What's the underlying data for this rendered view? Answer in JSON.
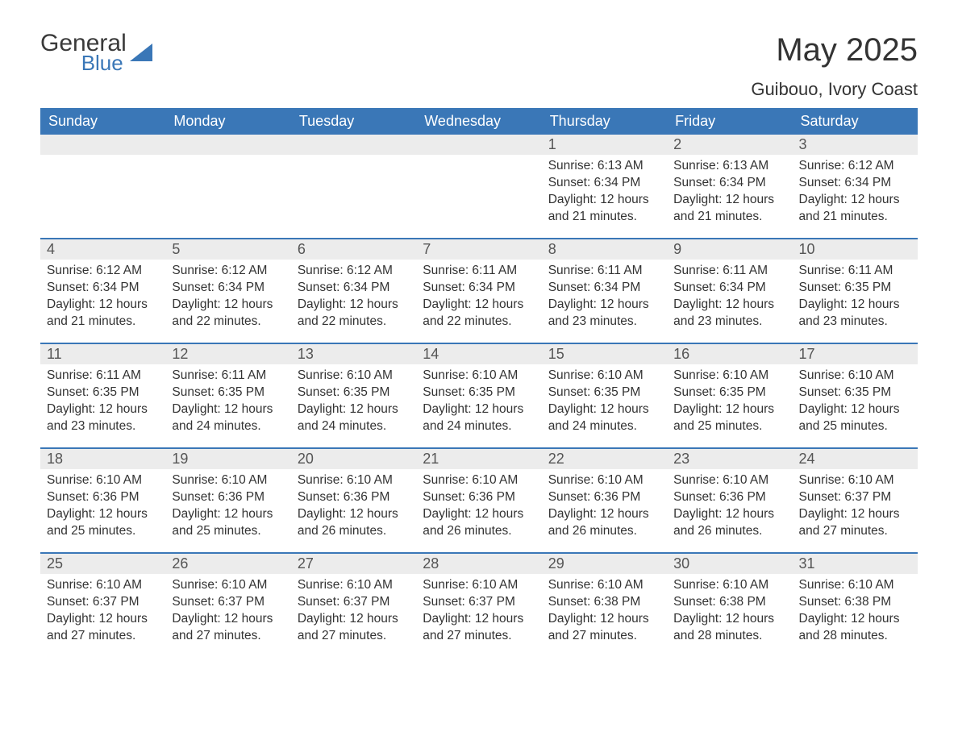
{
  "logo": {
    "text1": "General",
    "text2": "Blue",
    "icon_color": "#3a77b7"
  },
  "title": "May 2025",
  "location": "Guibouo, Ivory Coast",
  "colors": {
    "header_bg": "#3a77b7",
    "header_text": "#ffffff",
    "daynum_bg": "#ececec",
    "daynum_text": "#555555",
    "body_text": "#333333",
    "divider": "#3a77b7",
    "page_bg": "#ffffff"
  },
  "typography": {
    "title_fontsize": 40,
    "location_fontsize": 22,
    "dayheader_fontsize": 18,
    "daynum_fontsize": 18,
    "body_fontsize": 15.5
  },
  "day_headers": [
    "Sunday",
    "Monday",
    "Tuesday",
    "Wednesday",
    "Thursday",
    "Friday",
    "Saturday"
  ],
  "weeks": [
    [
      {
        "day": "",
        "lines": []
      },
      {
        "day": "",
        "lines": []
      },
      {
        "day": "",
        "lines": []
      },
      {
        "day": "",
        "lines": []
      },
      {
        "day": "1",
        "lines": [
          "Sunrise: 6:13 AM",
          "Sunset: 6:34 PM",
          "Daylight: 12 hours",
          "and 21 minutes."
        ]
      },
      {
        "day": "2",
        "lines": [
          "Sunrise: 6:13 AM",
          "Sunset: 6:34 PM",
          "Daylight: 12 hours",
          "and 21 minutes."
        ]
      },
      {
        "day": "3",
        "lines": [
          "Sunrise: 6:12 AM",
          "Sunset: 6:34 PM",
          "Daylight: 12 hours",
          "and 21 minutes."
        ]
      }
    ],
    [
      {
        "day": "4",
        "lines": [
          "Sunrise: 6:12 AM",
          "Sunset: 6:34 PM",
          "Daylight: 12 hours",
          "and 21 minutes."
        ]
      },
      {
        "day": "5",
        "lines": [
          "Sunrise: 6:12 AM",
          "Sunset: 6:34 PM",
          "Daylight: 12 hours",
          "and 22 minutes."
        ]
      },
      {
        "day": "6",
        "lines": [
          "Sunrise: 6:12 AM",
          "Sunset: 6:34 PM",
          "Daylight: 12 hours",
          "and 22 minutes."
        ]
      },
      {
        "day": "7",
        "lines": [
          "Sunrise: 6:11 AM",
          "Sunset: 6:34 PM",
          "Daylight: 12 hours",
          "and 22 minutes."
        ]
      },
      {
        "day": "8",
        "lines": [
          "Sunrise: 6:11 AM",
          "Sunset: 6:34 PM",
          "Daylight: 12 hours",
          "and 23 minutes."
        ]
      },
      {
        "day": "9",
        "lines": [
          "Sunrise: 6:11 AM",
          "Sunset: 6:34 PM",
          "Daylight: 12 hours",
          "and 23 minutes."
        ]
      },
      {
        "day": "10",
        "lines": [
          "Sunrise: 6:11 AM",
          "Sunset: 6:35 PM",
          "Daylight: 12 hours",
          "and 23 minutes."
        ]
      }
    ],
    [
      {
        "day": "11",
        "lines": [
          "Sunrise: 6:11 AM",
          "Sunset: 6:35 PM",
          "Daylight: 12 hours",
          "and 23 minutes."
        ]
      },
      {
        "day": "12",
        "lines": [
          "Sunrise: 6:11 AM",
          "Sunset: 6:35 PM",
          "Daylight: 12 hours",
          "and 24 minutes."
        ]
      },
      {
        "day": "13",
        "lines": [
          "Sunrise: 6:10 AM",
          "Sunset: 6:35 PM",
          "Daylight: 12 hours",
          "and 24 minutes."
        ]
      },
      {
        "day": "14",
        "lines": [
          "Sunrise: 6:10 AM",
          "Sunset: 6:35 PM",
          "Daylight: 12 hours",
          "and 24 minutes."
        ]
      },
      {
        "day": "15",
        "lines": [
          "Sunrise: 6:10 AM",
          "Sunset: 6:35 PM",
          "Daylight: 12 hours",
          "and 24 minutes."
        ]
      },
      {
        "day": "16",
        "lines": [
          "Sunrise: 6:10 AM",
          "Sunset: 6:35 PM",
          "Daylight: 12 hours",
          "and 25 minutes."
        ]
      },
      {
        "day": "17",
        "lines": [
          "Sunrise: 6:10 AM",
          "Sunset: 6:35 PM",
          "Daylight: 12 hours",
          "and 25 minutes."
        ]
      }
    ],
    [
      {
        "day": "18",
        "lines": [
          "Sunrise: 6:10 AM",
          "Sunset: 6:36 PM",
          "Daylight: 12 hours",
          "and 25 minutes."
        ]
      },
      {
        "day": "19",
        "lines": [
          "Sunrise: 6:10 AM",
          "Sunset: 6:36 PM",
          "Daylight: 12 hours",
          "and 25 minutes."
        ]
      },
      {
        "day": "20",
        "lines": [
          "Sunrise: 6:10 AM",
          "Sunset: 6:36 PM",
          "Daylight: 12 hours",
          "and 26 minutes."
        ]
      },
      {
        "day": "21",
        "lines": [
          "Sunrise: 6:10 AM",
          "Sunset: 6:36 PM",
          "Daylight: 12 hours",
          "and 26 minutes."
        ]
      },
      {
        "day": "22",
        "lines": [
          "Sunrise: 6:10 AM",
          "Sunset: 6:36 PM",
          "Daylight: 12 hours",
          "and 26 minutes."
        ]
      },
      {
        "day": "23",
        "lines": [
          "Sunrise: 6:10 AM",
          "Sunset: 6:36 PM",
          "Daylight: 12 hours",
          "and 26 minutes."
        ]
      },
      {
        "day": "24",
        "lines": [
          "Sunrise: 6:10 AM",
          "Sunset: 6:37 PM",
          "Daylight: 12 hours",
          "and 27 minutes."
        ]
      }
    ],
    [
      {
        "day": "25",
        "lines": [
          "Sunrise: 6:10 AM",
          "Sunset: 6:37 PM",
          "Daylight: 12 hours",
          "and 27 minutes."
        ]
      },
      {
        "day": "26",
        "lines": [
          "Sunrise: 6:10 AM",
          "Sunset: 6:37 PM",
          "Daylight: 12 hours",
          "and 27 minutes."
        ]
      },
      {
        "day": "27",
        "lines": [
          "Sunrise: 6:10 AM",
          "Sunset: 6:37 PM",
          "Daylight: 12 hours",
          "and 27 minutes."
        ]
      },
      {
        "day": "28",
        "lines": [
          "Sunrise: 6:10 AM",
          "Sunset: 6:37 PM",
          "Daylight: 12 hours",
          "and 27 minutes."
        ]
      },
      {
        "day": "29",
        "lines": [
          "Sunrise: 6:10 AM",
          "Sunset: 6:38 PM",
          "Daylight: 12 hours",
          "and 27 minutes."
        ]
      },
      {
        "day": "30",
        "lines": [
          "Sunrise: 6:10 AM",
          "Sunset: 6:38 PM",
          "Daylight: 12 hours",
          "and 28 minutes."
        ]
      },
      {
        "day": "31",
        "lines": [
          "Sunrise: 6:10 AM",
          "Sunset: 6:38 PM",
          "Daylight: 12 hours",
          "and 28 minutes."
        ]
      }
    ]
  ]
}
